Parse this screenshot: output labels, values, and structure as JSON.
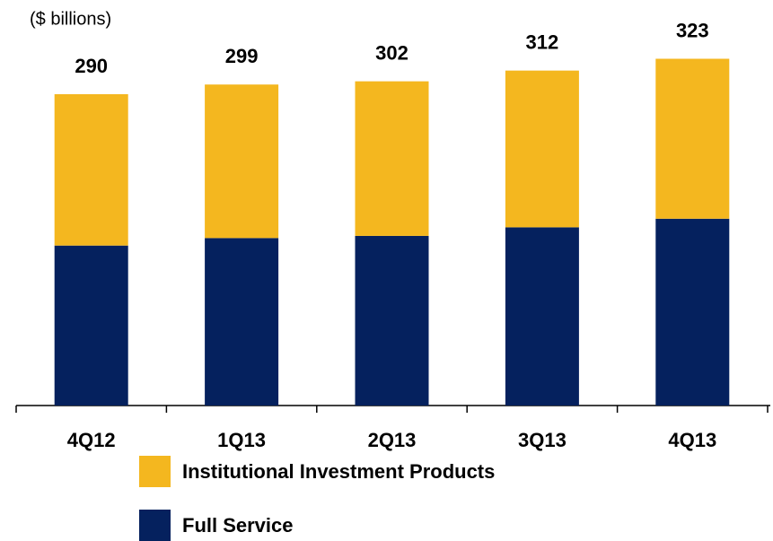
{
  "chart_data": {
    "type": "stacked_bar",
    "subtitle": "($ billions)",
    "categories": [
      "4Q12",
      "1Q13",
      "2Q13",
      "3Q13",
      "4Q13"
    ],
    "series": [
      {
        "name": "Full Service",
        "color": "#05215e",
        "values": [
          149,
          156,
          158,
          166,
          174
        ]
      },
      {
        "name": "Institutional Investment Products",
        "color": "#f4b71f",
        "values": [
          141,
          143,
          144,
          146,
          149
        ]
      }
    ],
    "totals": [
      290,
      299,
      302,
      312,
      323
    ]
  }
}
